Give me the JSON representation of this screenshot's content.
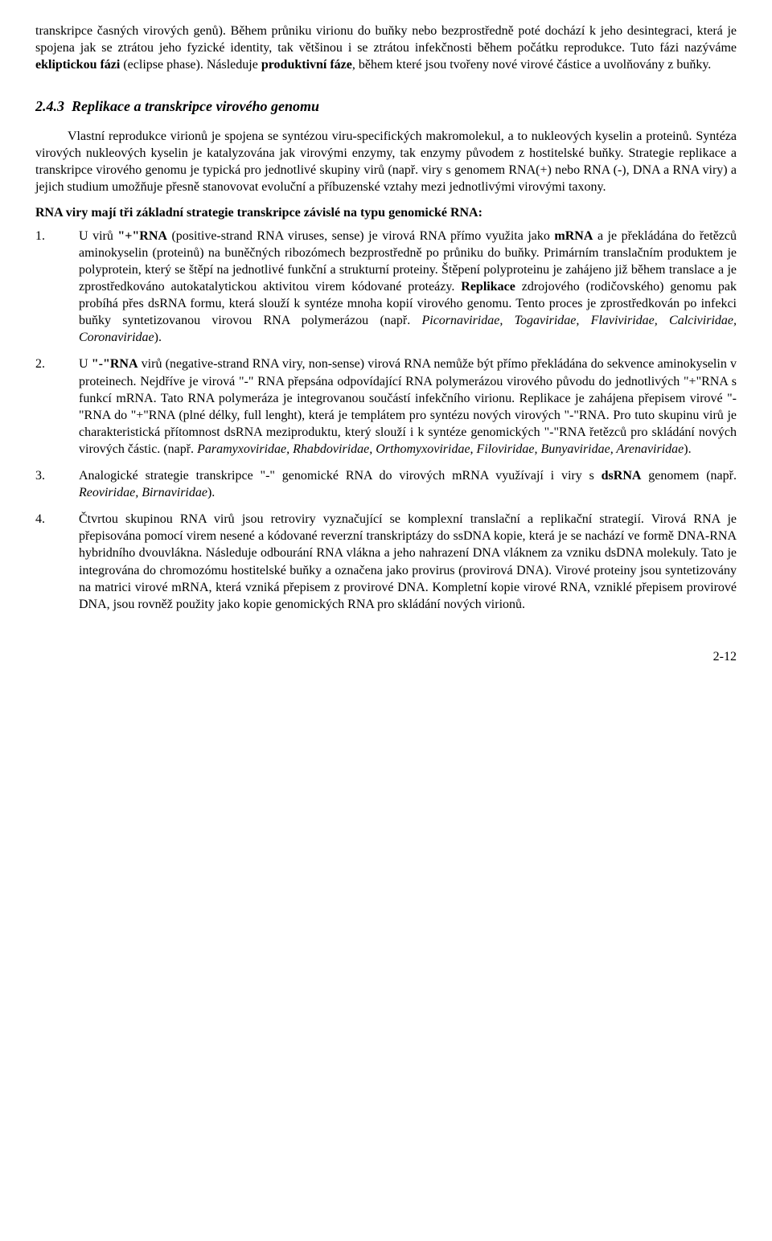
{
  "intro_html": "transkripce časných virových genů). Během průniku virionu do buňky nebo bezprostředně poté dochází k jeho desintegraci, která je spojena jak se ztrátou jeho fyzické identity, tak většinou i se ztrátou infekčnosti během počátku reprodukce. Tuto fázi nazýváme <b>ekliptickou fázi</b> (eclipse phase). Následuje <b>produktivní fáze</b>, během které jsou tvořeny nové virové částice a uvolňovány z buňky.",
  "section_number": "2.4.3",
  "section_title": "Replikace a transkripce virového genomu",
  "body_html": "Vlastní reprodukce virionů je spojena se syntézou viru-specifických makromolekul, a to nukleových kyselin a proteinů. Syntéza virových nukleových kyselin je katalyzována jak virovými enzymy, tak enzymy původem z hostitelské buňky. Strategie replikace a transkripce virového genomu je typická pro jednotlivé skupiny virů (např. viry s genomem RNA(+) nebo RNA (-), DNA a RNA viry) a jejich studium umožňuje přesně stanovovat evoluční a příbuzenské vztahy mezi jednotlivými virovými taxony.",
  "subheading": "RNA viry  mají tři základní strategie transkripce závislé na typu genomické RNA:",
  "items": [
    {
      "num": "1.",
      "html": "U virů <b>\"+\"RNA</b> (positive-strand RNA viruses, sense) je virová RNA přímo využita jako <b>mRNA</b> a je překládána do řetězců aminokyselin (proteinů) na buněčných ribozómech bezprostředně po průniku do buňky. Primárním translačním produktem je polyprotein, který se štěpí na jednotlivé funkční a strukturní proteiny. Štěpení polyproteinu je zahájeno již během translace a je zprostředkováno autokatalytickou aktivitou virem kódované proteázy. <b>Replikace</b> zdrojového (rodičovského) genomu pak probíhá přes dsRNA formu, která slouží k syntéze mnoha kopií virového genomu. Tento proces je zprostředkován po infekci buňky syntetizovanou virovou RNA polymerázou (např. <i>Picornaviridae, Togaviridae, Flaviviridae, Calciviridae, Coronaviridae</i>)."
    },
    {
      "num": "2.",
      "html": "U <b>\"-\"RNA</b> virů (negative-strand RNA viry, non-sense) virová RNA nemůže být přímo překládána do sekvence aminokyselin v proteinech. Nejdříve je virová \"-\" RNA přepsána odpovídající RNA polymerázou virového původu do jednotlivých \"+\"RNA s funkcí mRNA. Tato RNA polymeráza je integrovanou součástí infekčního virionu. Replikace je zahájena  přepisem virové \"-\"RNA do \"+\"RNA (plné délky, full lenght), která je templátem pro syntézu nových virových \"-\"RNA. Pro tuto skupinu virů je charakteristická přítomnost dsRNA meziproduktu, který slouží i k syntéze genomických \"-\"RNA řetězců pro skládání nových virových částic. (např. <i>Paramyxoviridae, Rhabdoviridae, Orthomyxoviridae, Filoviridae, Bunyaviridae, Arenaviridae</i>)."
    },
    {
      "num": "3.",
      "html": "Analogické strategie transkripce \"-\" genomické RNA do virových mRNA využívají i viry s <b>dsRNA</b> genomem (např. <i>Reoviridae, Birnaviridae</i>)."
    },
    {
      "num": "4.",
      "html": "Čtvrtou skupinou RNA virů jsou retroviry vyznačující se komplexní translační a replikační strategií. Virová RNA je přepisována pomocí virem nesené a kódované reverzní transkriptázy do ssDNA kopie, která je se nachází ve formě DNA-RNA hybridního dvouvlákna. Následuje odbourání RNA vlákna a jeho nahrazení DNA vláknem za vzniku dsDNA molekuly. Tato je integrována do chromozómu hostitelské buňky a označena jako provirus (provirová DNA). Virové proteiny jsou syntetizovány na matrici virové mRNA, která vzniká přepisem z provirové DNA. Kompletní kopie virové RNA, vzniklé přepisem provirové DNA, jsou rovněž použity jako kopie genomických RNA pro skládání nových virionů."
    }
  ],
  "page_number": "2-12"
}
